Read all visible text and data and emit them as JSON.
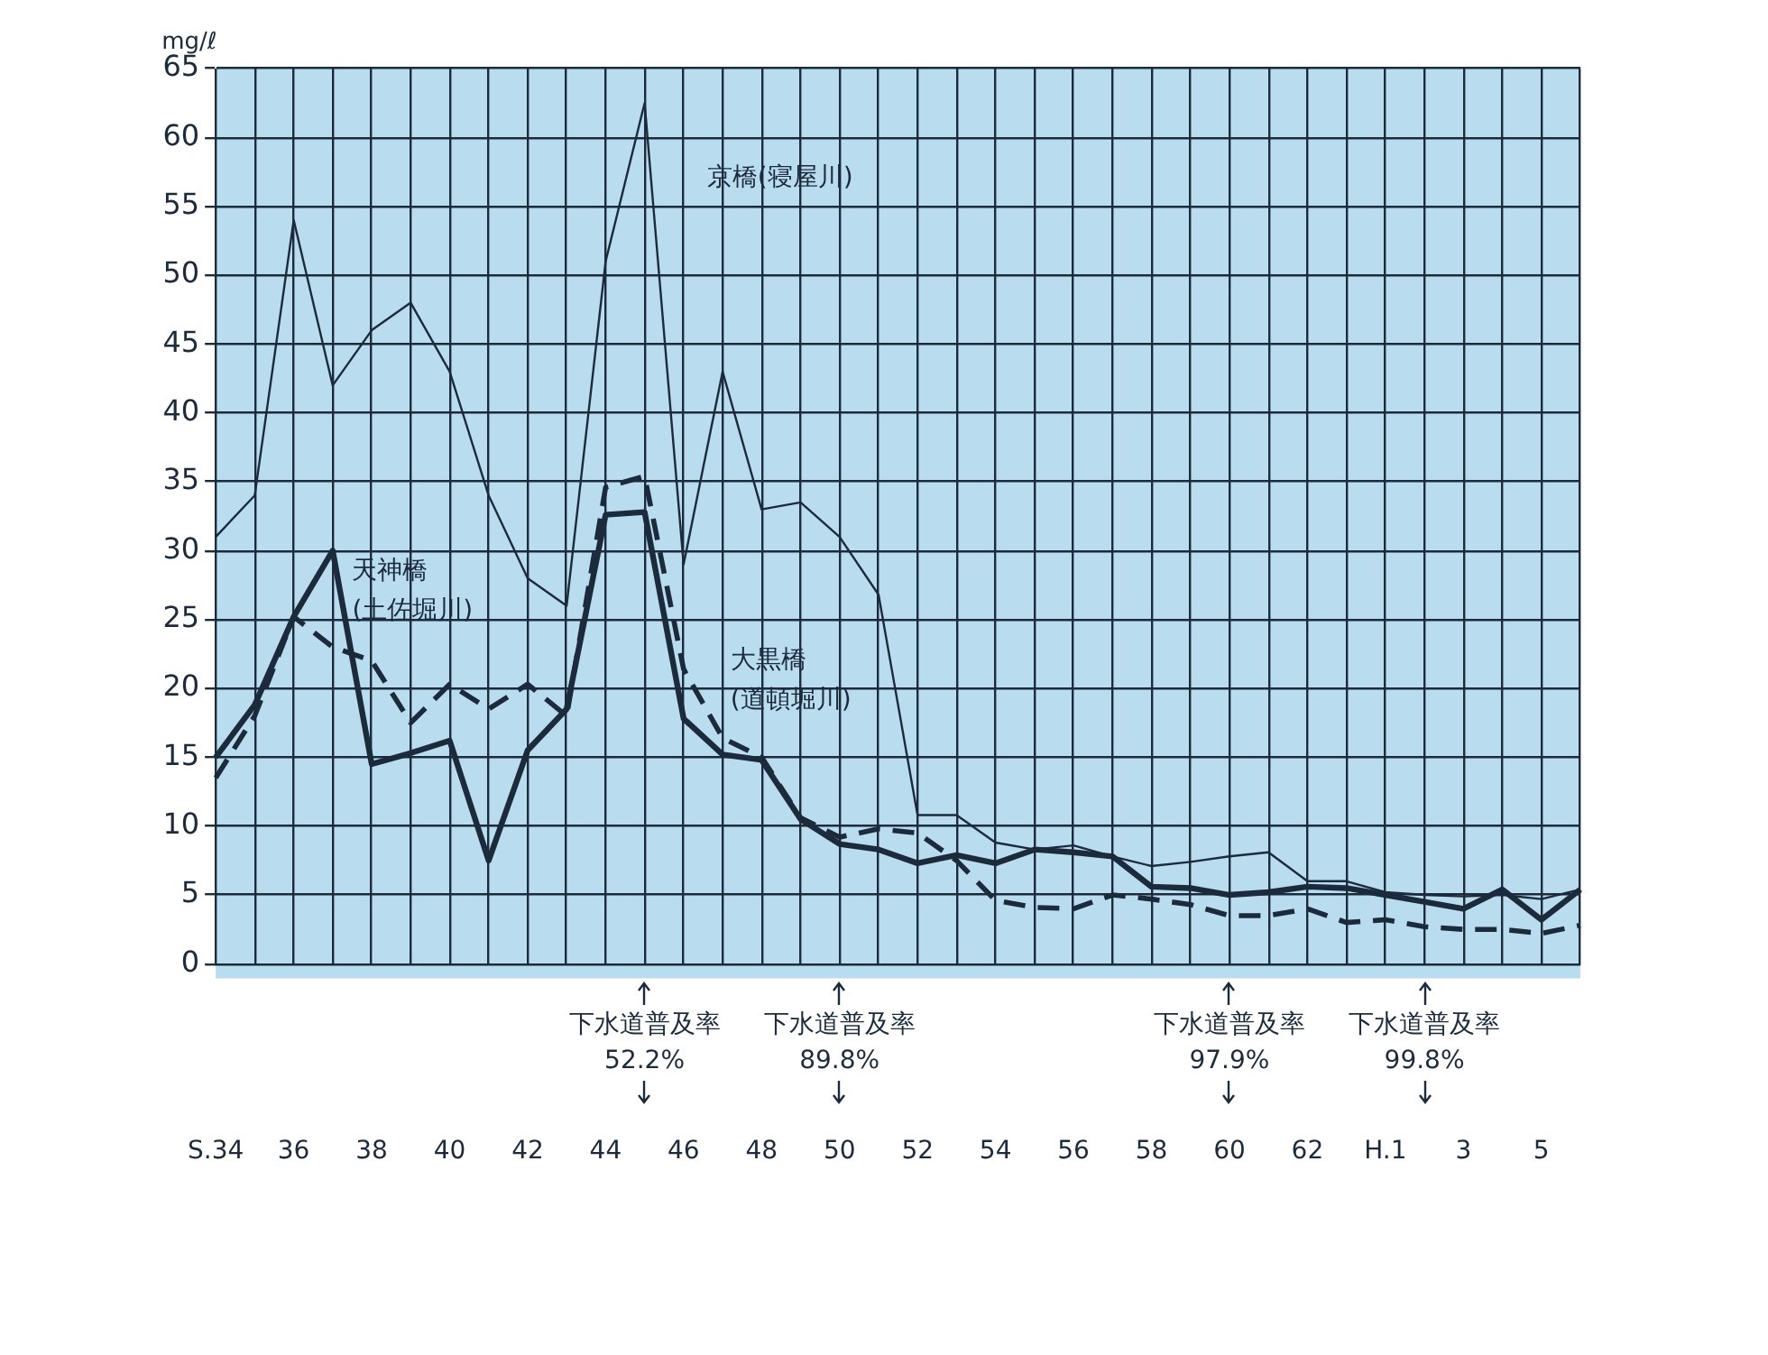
{
  "chart_data": {
    "type": "line",
    "ylabel": "mg/ℓ",
    "categories": [
      "S.34",
      null,
      "36",
      null,
      "38",
      null,
      "40",
      null,
      "42",
      null,
      "44",
      null,
      "46",
      null,
      "48",
      null,
      "50",
      null,
      "52",
      null,
      "54",
      null,
      "56",
      null,
      "58",
      null,
      "60",
      null,
      "62",
      null,
      "H.1",
      null,
      "3",
      null,
      "5",
      null
    ],
    "series": [
      {
        "name": "京橋(寝屋川)",
        "color": "#1c2b3c",
        "line_style": "solid",
        "values": [
          31,
          34,
          54,
          42,
          46,
          48,
          43,
          34,
          28,
          26,
          51,
          62.5,
          29,
          43,
          33,
          33.5,
          31,
          26.8,
          10.8,
          10.8,
          8.8,
          8.3,
          8.6,
          7.8,
          7.1,
          7.4,
          7.8,
          8.1,
          6,
          6,
          5.2,
          5,
          4.9,
          5,
          4.7,
          5.4
        ]
      },
      {
        "name": "天神橋\n(土佐堀川)",
        "color": "#1c2b3c",
        "line_style": "solid",
        "values": [
          15,
          18.8,
          25.2,
          30,
          14.5,
          15.3,
          16.2,
          7.5,
          15.5,
          18.5,
          32.6,
          32.8,
          17.8,
          15.2,
          14.8,
          10.5,
          8.7,
          8.3,
          7.3,
          7.9,
          7.3,
          8.3,
          8.1,
          7.8,
          5.6,
          5.5,
          5,
          5.2,
          5.6,
          5.5,
          5,
          4.5,
          4,
          5.4,
          3.2,
          5.4
        ]
      },
      {
        "name": "大黒橋\n(道頓堀川)",
        "color": "#1c2b3c",
        "line_style": "dashed",
        "values": [
          13.5,
          18,
          25.2,
          23,
          22,
          17.5,
          20.3,
          18.5,
          20.3,
          18,
          34.6,
          35.4,
          21.4,
          16.4,
          15,
          10.6,
          9.2,
          9.8,
          9.5,
          7.5,
          4.6,
          4.1,
          4,
          5,
          4.7,
          4.3,
          3.5,
          3.5,
          4,
          3,
          3.2,
          2.7,
          2.5,
          2.5,
          2.2,
          2.8
        ]
      }
    ],
    "ylim": [
      0,
      65
    ],
    "yticks": [
      0,
      5,
      10,
      15,
      20,
      25,
      30,
      35,
      40,
      45,
      50,
      55,
      60,
      65
    ],
    "grid": true,
    "legend": false,
    "marker": "none",
    "annotations": [
      "下水道普及率\n52.2%",
      "下水道普及率\n89.8%",
      "下水道普及率\n97.9%",
      "下水道普及率\n99.8%"
    ]
  }
}
